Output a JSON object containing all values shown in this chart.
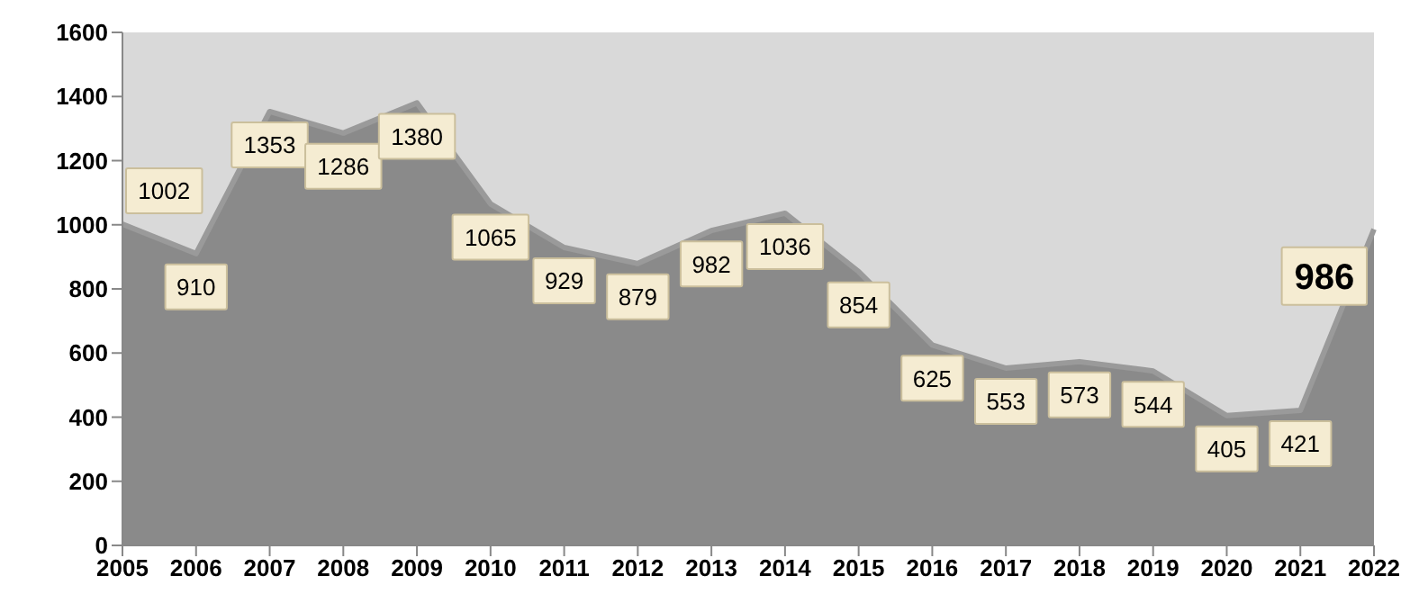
{
  "chart_data": {
    "type": "area",
    "categories": [
      "2005",
      "2006",
      "2007",
      "2008",
      "2009",
      "2010",
      "2011",
      "2012",
      "2013",
      "2014",
      "2015",
      "2016",
      "2017",
      "2018",
      "2019",
      "2020",
      "2021",
      "2022"
    ],
    "series": [
      {
        "color": "#8a8a8a",
        "values": [
          1002,
          910,
          1353,
          1286,
          1380,
          1065,
          929,
          879,
          982,
          1036,
          854,
          625,
          553,
          573,
          544,
          405,
          421,
          986
        ]
      }
    ],
    "ylim": [
      0,
      1600
    ],
    "yticks": [
      0,
      200,
      400,
      600,
      800,
      1000,
      1200,
      1400,
      1600
    ],
    "grid": false,
    "legend": false,
    "data_labels": true
  }
}
